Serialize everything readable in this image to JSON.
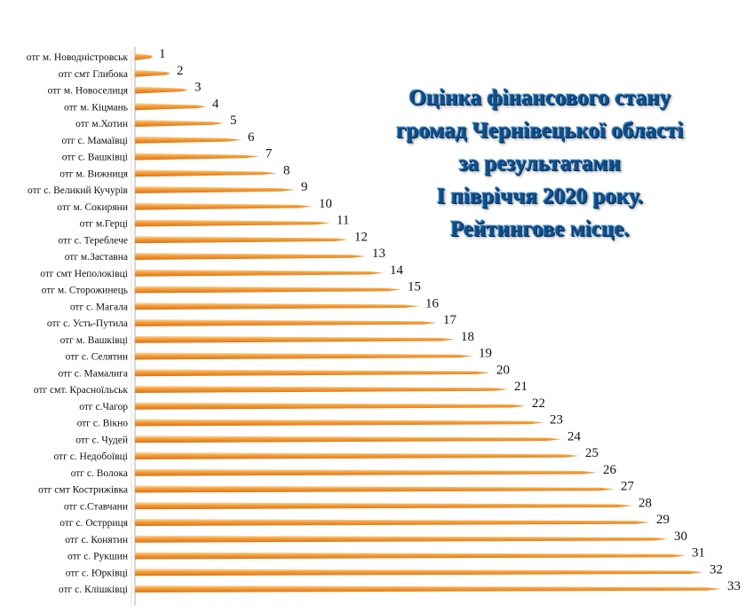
{
  "chart_data": {
    "type": "bar",
    "orientation": "horizontal",
    "title_lines": [
      "Оцінка фінансового стану",
      "громад Чернівецької області",
      "за результатами",
      "І півріччя 2020 року.",
      "Рейтингове місце."
    ],
    "categories": [
      "отг м. Новодністровськ",
      "отг смт Глибока",
      "отг м. Новоселиця",
      "отг м. Кіцмань",
      "отг   м.Хотин",
      "отг с. Мамаївці",
      "отг с. Вашківці",
      "отг м. Вижниця",
      "отг с. Великий Кучурів",
      "отг м. Сокиряни",
      "отг м.Герці",
      "отг с. Тереблече",
      "отг м.Заставна",
      "отг   смт Неполоківці",
      "отг м. Сторожинець",
      "отг с. Магала",
      "отг с. Усть-Путила",
      "отг м. Вашківці",
      "отг с. Селятин",
      "отг с. Мамалига",
      "отг смт. Красноїльськ",
      "отг   с.Чагор",
      "отг с. Вікно",
      "отг с. Чудей",
      "отг с. Недобоївці",
      "отг с. Волока",
      "отг смт Кострижівка",
      "отг   с.Ставчани",
      "отг с. Острриця",
      "отг с. Конятин",
      "отг с. Рукшин",
      "отг с. Юрківці",
      "отг с. Клішківці"
    ],
    "values": [
      1,
      2,
      3,
      4,
      5,
      6,
      7,
      8,
      9,
      10,
      11,
      12,
      13,
      14,
      15,
      16,
      17,
      18,
      19,
      20,
      21,
      22,
      23,
      24,
      25,
      26,
      27,
      28,
      29,
      30,
      31,
      32,
      33
    ],
    "xlim": [
      0,
      33
    ],
    "grid": false,
    "legend": "none",
    "colors": {
      "bar": "#f39c34",
      "bar_light": "#ffd9a8",
      "bar_dark": "#d9731a",
      "axis": "#bfbfbf",
      "title": "#0d4f8c"
    }
  }
}
